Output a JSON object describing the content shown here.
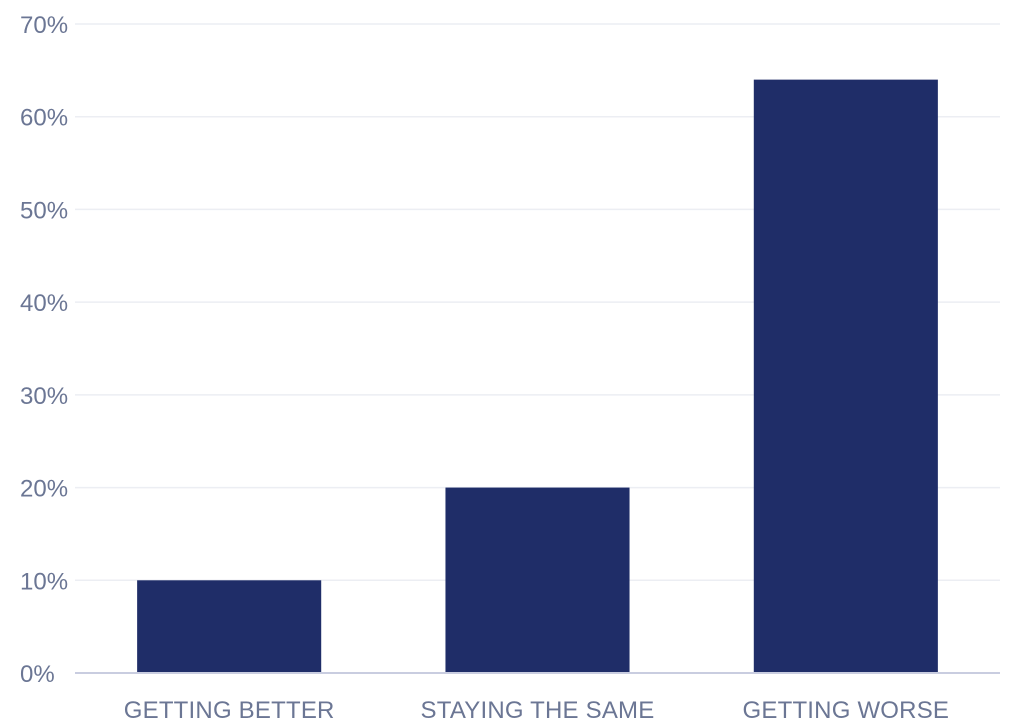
{
  "chart_data": {
    "type": "bar",
    "title": "",
    "xlabel": "",
    "ylabel": "",
    "categories": [
      "GETTING BETTER",
      "STAYING THE SAME",
      "GETTING WORSE"
    ],
    "values": [
      10,
      20,
      64
    ],
    "ylim": [
      0,
      70
    ],
    "yticks": [
      0,
      10,
      20,
      30,
      40,
      50,
      60,
      70
    ],
    "ytick_labels": [
      "0%",
      "10%",
      "20%",
      "30%",
      "40%",
      "50%",
      "60%",
      "70%"
    ],
    "grid": true,
    "legend": "none",
    "colors": {
      "bar": "#1f2d68",
      "grid": "#eceef3",
      "axis": "#c9cde0",
      "tick_text": "#6b7694"
    }
  }
}
